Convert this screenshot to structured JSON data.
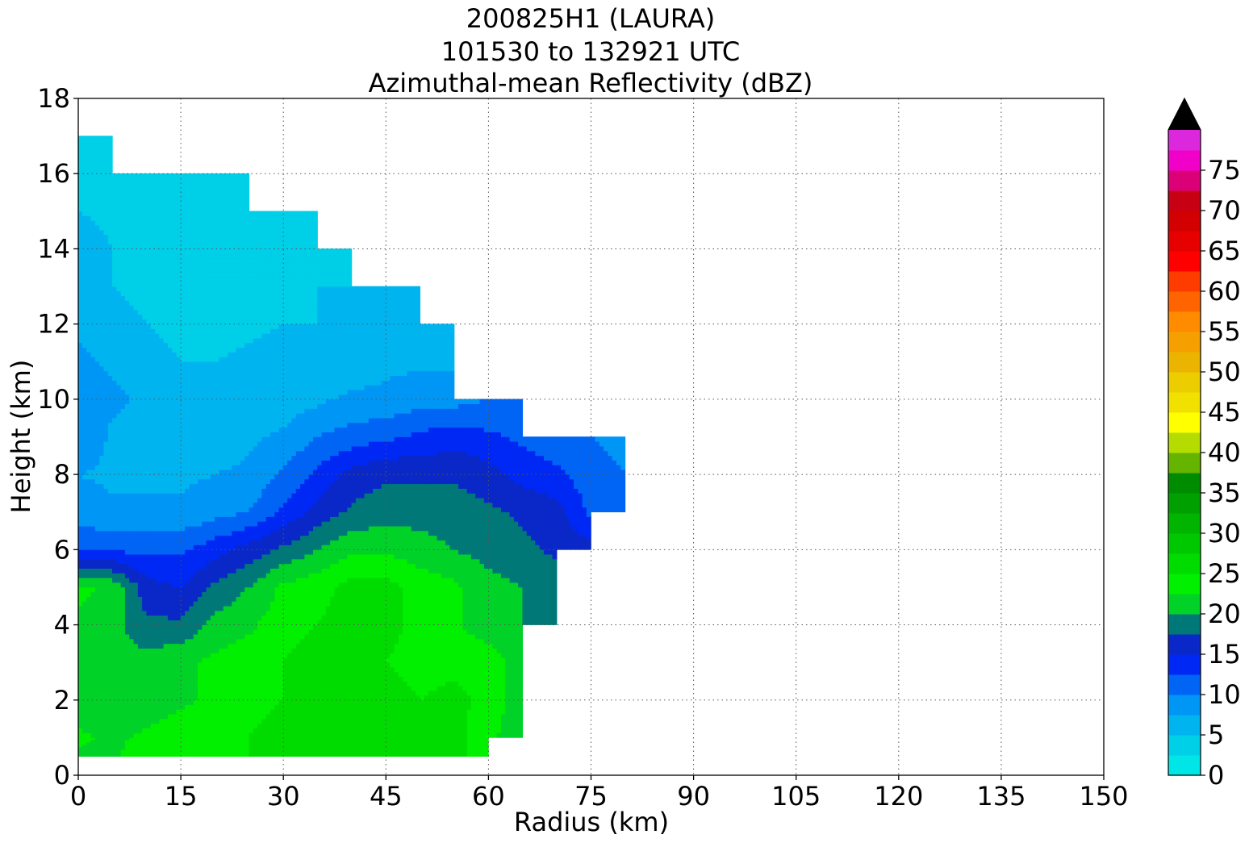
{
  "chart_data": {
    "type": "contour",
    "title": [
      "200825H1 (LAURA)",
      "101530 to 132921 UTC",
      "Azimuthal-mean Reflectivity (dBZ)"
    ],
    "xlabel": "Radius (km)",
    "ylabel": "Height (km)",
    "xlim": [
      0,
      150
    ],
    "ylim": [
      0,
      18
    ],
    "xticks": [
      0,
      15,
      30,
      45,
      60,
      75,
      90,
      105,
      120,
      135,
      150
    ],
    "yticks": [
      0,
      2,
      4,
      6,
      8,
      10,
      12,
      14,
      16,
      18
    ],
    "grid": true,
    "colorbar": {
      "label": "dBZ",
      "ticks": [
        0,
        5,
        10,
        15,
        20,
        25,
        30,
        35,
        40,
        45,
        50,
        55,
        60,
        65,
        70,
        75
      ],
      "levels": [
        0,
        2.5,
        5,
        7.5,
        10,
        12.5,
        15,
        17.5,
        20,
        22.5,
        25,
        27.5,
        30,
        32.5,
        35,
        37.5,
        40,
        42.5,
        45,
        47.5,
        50,
        52.5,
        55,
        57.5,
        60,
        62.5,
        65,
        67.5,
        70,
        72.5,
        75,
        77.5,
        80
      ],
      "colors": [
        "#00e5e5",
        "#00cfe8",
        "#00b4f0",
        "#0096f5",
        "#0064f5",
        "#0028f5",
        "#0a28c8",
        "#007878",
        "#00d228",
        "#00f000",
        "#00dc00",
        "#00c800",
        "#00b400",
        "#00a000",
        "#008c00",
        "#64b400",
        "#b4dc00",
        "#ffff00",
        "#f0e100",
        "#ebcd00",
        "#ebb400",
        "#f5a000",
        "#ff8c00",
        "#ff6400",
        "#ff3c00",
        "#ff0000",
        "#e60000",
        "#d20000",
        "#c80014",
        "#dc0078",
        "#f000c8",
        "#dc28dc",
        "#a050c8",
        "#784696",
        "#3c1e50"
      ],
      "extend_max_color": "#000000"
    },
    "contour_levels_dbz": [
      2.5,
      5,
      7.5,
      10,
      12.5,
      15,
      17.5,
      20,
      22.5,
      25,
      27.5
    ],
    "radius_km": [
      0,
      5,
      10,
      15,
      20,
      25,
      30,
      35,
      40,
      45,
      50,
      55,
      60,
      65,
      70,
      75,
      80,
      85
    ],
    "height_km": [
      0.5,
      1,
      2,
      3,
      4,
      5,
      6,
      7,
      8,
      9,
      10,
      11,
      12,
      13,
      14,
      15,
      16,
      17
    ],
    "reflectivity_dbz_rows_by_height": [
      [
        22,
        22,
        24,
        24,
        24,
        25,
        26,
        27,
        27,
        26,
        26,
        26,
        23,
        null,
        null,
        null,
        null,
        null
      ],
      [
        23,
        22,
        23,
        24,
        24,
        25,
        26,
        27,
        27.5,
        26,
        26,
        26,
        23,
        21,
        null,
        null,
        null,
        null
      ],
      [
        21,
        21,
        21,
        22,
        23,
        24,
        25,
        26,
        27,
        26,
        25,
        26,
        24,
        21,
        null,
        null,
        null,
        null
      ],
      [
        21,
        21,
        21,
        22,
        23,
        24,
        25,
        26,
        26,
        25,
        24,
        24,
        24,
        21,
        null,
        null,
        null,
        null
      ],
      [
        22,
        21,
        18,
        18,
        21,
        22,
        24,
        25,
        26,
        26,
        24,
        23,
        21,
        20,
        19,
        null,
        null,
        null
      ],
      [
        23,
        22,
        16,
        15,
        18,
        20,
        23,
        24,
        26,
        26,
        24,
        23,
        21,
        20,
        19,
        null,
        null,
        null
      ],
      [
        12,
        12,
        12,
        12,
        14,
        16,
        18,
        20,
        22,
        22,
        21,
        20,
        19,
        18,
        17,
        16,
        null,
        null
      ],
      [
        9,
        8,
        8,
        8,
        9,
        10,
        13,
        16,
        18,
        19,
        19,
        19,
        18,
        17,
        16,
        12,
        10,
        null
      ],
      [
        7.5,
        7,
        7,
        7,
        7.5,
        8,
        10.5,
        13,
        16,
        17,
        17,
        17,
        16,
        14,
        13,
        11,
        10,
        10
      ],
      [
        10,
        7,
        7,
        6,
        6,
        7,
        8,
        10,
        11,
        12,
        13,
        14,
        13,
        12,
        11,
        10,
        9,
        null
      ],
      [
        10,
        8,
        7,
        6,
        6,
        6,
        6,
        7,
        8,
        8,
        9,
        9,
        10,
        10,
        null,
        null,
        null,
        null
      ],
      [
        8,
        7,
        6,
        5,
        5,
        5.5,
        6,
        6,
        6,
        7,
        7,
        7,
        null,
        null,
        null,
        null,
        null,
        null
      ],
      [
        7,
        6,
        5,
        4,
        4,
        4.5,
        5,
        5,
        5,
        5,
        5,
        5,
        null,
        null,
        null,
        null,
        null,
        null
      ],
      [
        7,
        5,
        4,
        4,
        4,
        4.5,
        4.5,
        5,
        5,
        5,
        5,
        null,
        null,
        null,
        null,
        null,
        null,
        null
      ],
      [
        6,
        5,
        4,
        4,
        3.5,
        3.5,
        4,
        4,
        4,
        null,
        null,
        null,
        null,
        null,
        null,
        null,
        null,
        null
      ],
      [
        5,
        4.5,
        4,
        4,
        3.5,
        3.5,
        4,
        4,
        null,
        null,
        null,
        null,
        null,
        null,
        null,
        null,
        null,
        null
      ],
      [
        4.5,
        4,
        3.5,
        3.5,
        3,
        3,
        null,
        null,
        null,
        null,
        null,
        null,
        null,
        null,
        null,
        null,
        null,
        null
      ],
      [
        4,
        4,
        null,
        null,
        null,
        null,
        null,
        null,
        null,
        null,
        null,
        null,
        null,
        null,
        null,
        null,
        null,
        null
      ]
    ]
  }
}
